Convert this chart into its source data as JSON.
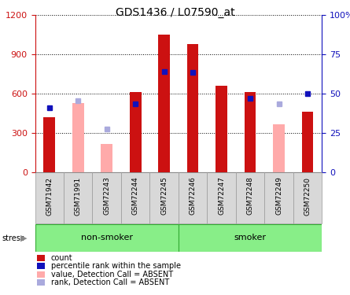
{
  "title": "GDS1436 / L07590_at",
  "samples": [
    "GSM71942",
    "GSM71991",
    "GSM72243",
    "GSM72244",
    "GSM72245",
    "GSM72246",
    "GSM72247",
    "GSM72248",
    "GSM72249",
    "GSM72250"
  ],
  "count_values": [
    420,
    null,
    null,
    610,
    1050,
    980,
    660,
    610,
    null,
    460
  ],
  "count_absent_values": [
    null,
    530,
    220,
    null,
    null,
    null,
    null,
    null,
    370,
    null
  ],
  "rank_values": [
    490,
    null,
    null,
    520,
    770,
    760,
    null,
    565,
    null,
    600
  ],
  "rank_absent_values": [
    null,
    545,
    330,
    null,
    null,
    null,
    null,
    null,
    520,
    null
  ],
  "non_smoker_group": [
    0,
    4
  ],
  "smoker_group": [
    5,
    9
  ],
  "ylim_left": [
    0,
    1200
  ],
  "ylim_right": [
    0,
    100
  ],
  "yticks_left": [
    0,
    300,
    600,
    900,
    1200
  ],
  "yticks_right": [
    0,
    25,
    50,
    75,
    100
  ],
  "color_count": "#cc1111",
  "color_rank": "#1111bb",
  "color_absent_value": "#ffaaaa",
  "color_absent_rank": "#aaaadd",
  "group_bg_color": "#88ee88",
  "axis_bg_color": "#d8d8d8",
  "plot_bg_color": "#ffffff",
  "legend_items": [
    {
      "label": "count",
      "color": "#cc1111"
    },
    {
      "label": "percentile rank within the sample",
      "color": "#1111bb"
    },
    {
      "label": "value, Detection Call = ABSENT",
      "color": "#ffaaaa"
    },
    {
      "label": "rank, Detection Call = ABSENT",
      "color": "#aaaadd"
    }
  ],
  "bar_width": 0.4
}
